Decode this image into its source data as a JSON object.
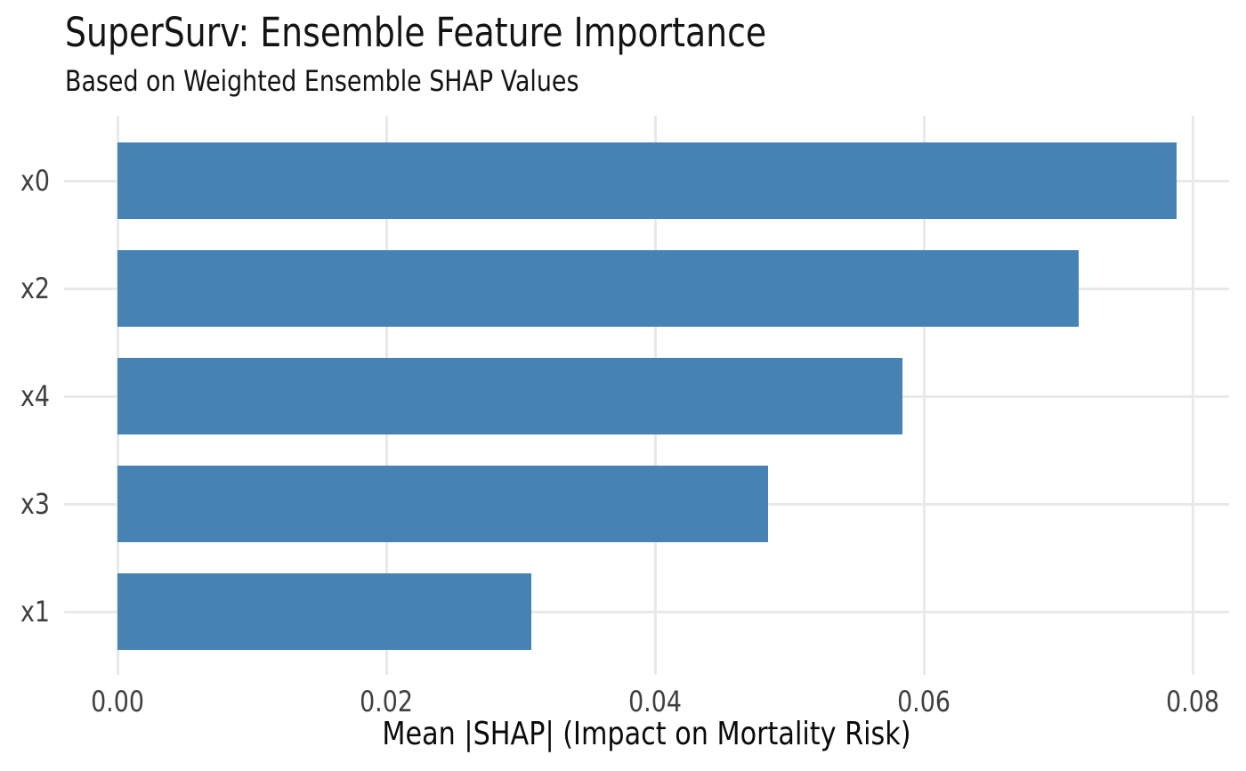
{
  "chart_data": {
    "type": "bar",
    "orientation": "horizontal",
    "title": "SuperSurv: Ensemble Feature Importance",
    "subtitle": "Based on Weighted Ensemble SHAP Values",
    "xlabel": "Mean |SHAP| (Impact on Mortality Risk)",
    "ylabel": "",
    "categories": [
      "x0",
      "x2",
      "x4",
      "x3",
      "x1"
    ],
    "values": [
      0.0788,
      0.0715,
      0.0584,
      0.0484,
      0.0308
    ],
    "xticks": [
      0.0,
      0.02,
      0.04,
      0.06,
      0.08
    ],
    "xtick_labels": [
      "0.00",
      "0.02",
      "0.04",
      "0.06",
      "0.08"
    ],
    "xlim": [
      -0.004,
      0.0827
    ],
    "grid": true,
    "grid_style": "both-axes-light",
    "legend": null,
    "colors": {
      "bar": "#4682b4",
      "grid": "#e9e9e9",
      "tick_label": "#3f3f3f",
      "title_text": "#141414",
      "axis_label_text": "#0a0a0a",
      "background": "#ffffff"
    }
  }
}
